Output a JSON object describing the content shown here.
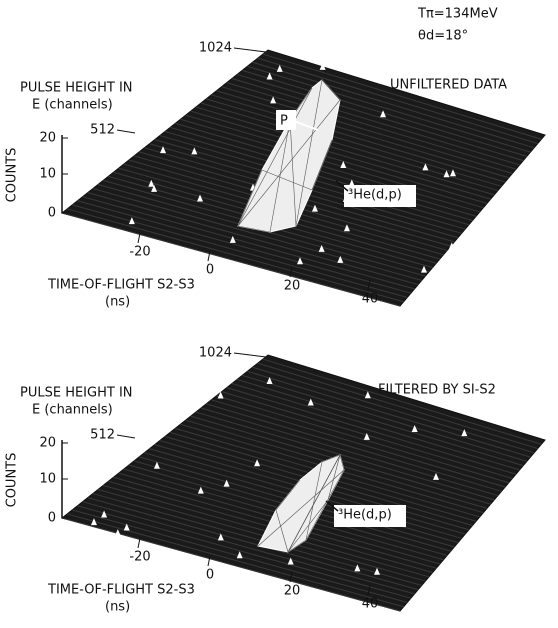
{
  "header": {
    "beam_energy": "Tπ=134MeV",
    "angle": "θd=18°"
  },
  "panels": [
    {
      "label": "UNFILTERED DATA",
      "y_axis_label": "PULSE HEIGHT IN",
      "y_axis_unit": "E (channels)",
      "y_ticks": [
        "512",
        "1024"
      ],
      "z_axis_label": "COUNTS",
      "z_ticks": [
        "0",
        "10",
        "20"
      ],
      "x_axis_label": "TIME-OF-FLIGHT S2-S3",
      "x_axis_unit": "(ns)",
      "x_ticks": [
        "-20",
        "0",
        "20",
        "40"
      ],
      "annotations": [
        "P",
        "³He(d,p)"
      ]
    },
    {
      "label": "FILTERED BY SI-S2",
      "y_axis_label": "PULSE HEIGHT IN",
      "y_axis_unit": "E (channels)",
      "y_ticks": [
        "512",
        "1024"
      ],
      "z_axis_label": "COUNTS",
      "z_ticks": [
        "0",
        "10",
        "20"
      ],
      "x_axis_label": "TIME-OF-FLIGHT S2-S3",
      "x_axis_unit": "(ns)",
      "x_ticks": [
        "-20",
        "0",
        "20",
        "40"
      ],
      "annotations": [
        "³He(d,p)"
      ]
    }
  ]
}
